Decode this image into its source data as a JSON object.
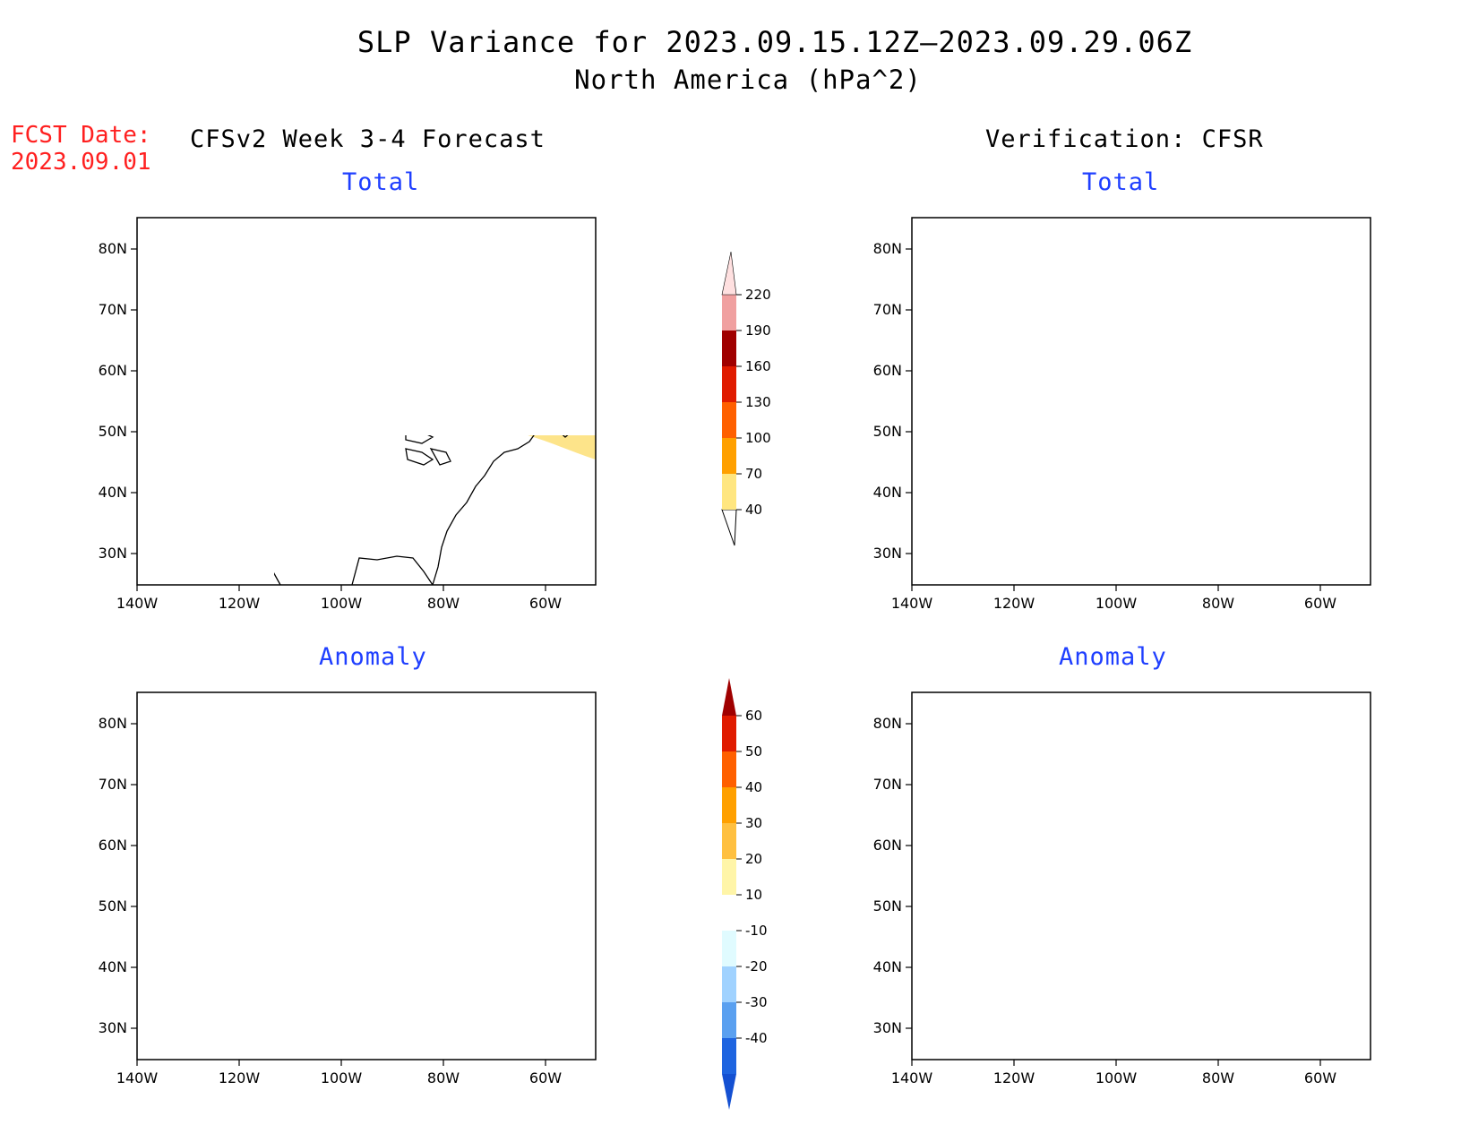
{
  "title": {
    "line1": "SLP Variance for 2023.09.15.12Z–2023.09.29.06Z",
    "line2": "North America (hPa^2)"
  },
  "forecast_date": {
    "label": "FCST Date:",
    "value": "2023.09.01"
  },
  "columns": {
    "left": "CFSv2 Week 3-4 Forecast",
    "right": "Verification: CFSR"
  },
  "panels": [
    {
      "id": "fcst-total",
      "title": "Total"
    },
    {
      "id": "verif-total",
      "title": "Total"
    },
    {
      "id": "fcst-anomaly",
      "title": "Anomaly"
    },
    {
      "id": "verif-anomaly",
      "title": "Anomaly"
    }
  ],
  "axes": {
    "lat_ticks": [
      "80N",
      "70N",
      "60N",
      "50N",
      "40N",
      "30N"
    ],
    "lon_ticks": [
      "140W",
      "120W",
      "100W",
      "80W",
      "60W"
    ]
  },
  "colorbars": {
    "total": {
      "levels": [
        "40",
        "70",
        "100",
        "130",
        "160",
        "190",
        "220"
      ],
      "colors": [
        "#ffe680",
        "#ffa000",
        "#ff6000",
        "#e01b00",
        "#a00000",
        "#f0a0a0",
        "#ffe0e0"
      ]
    },
    "anomaly": {
      "levels": [
        "60",
        "50",
        "40",
        "30",
        "20",
        "10",
        "-10",
        "-20",
        "-30",
        "-40"
      ],
      "colors": [
        "#a00000",
        "#e01b00",
        "#ff6000",
        "#ffa000",
        "#ffc040",
        "#fff5a8",
        "#ffffff",
        "#e0fbff",
        "#a0d2ff",
        "#5aa0f0",
        "#1e64e0",
        "#1450d2"
      ]
    }
  },
  "colors": {
    "title_blue": "#1f3fff",
    "fcst_red": "#ff2020"
  }
}
